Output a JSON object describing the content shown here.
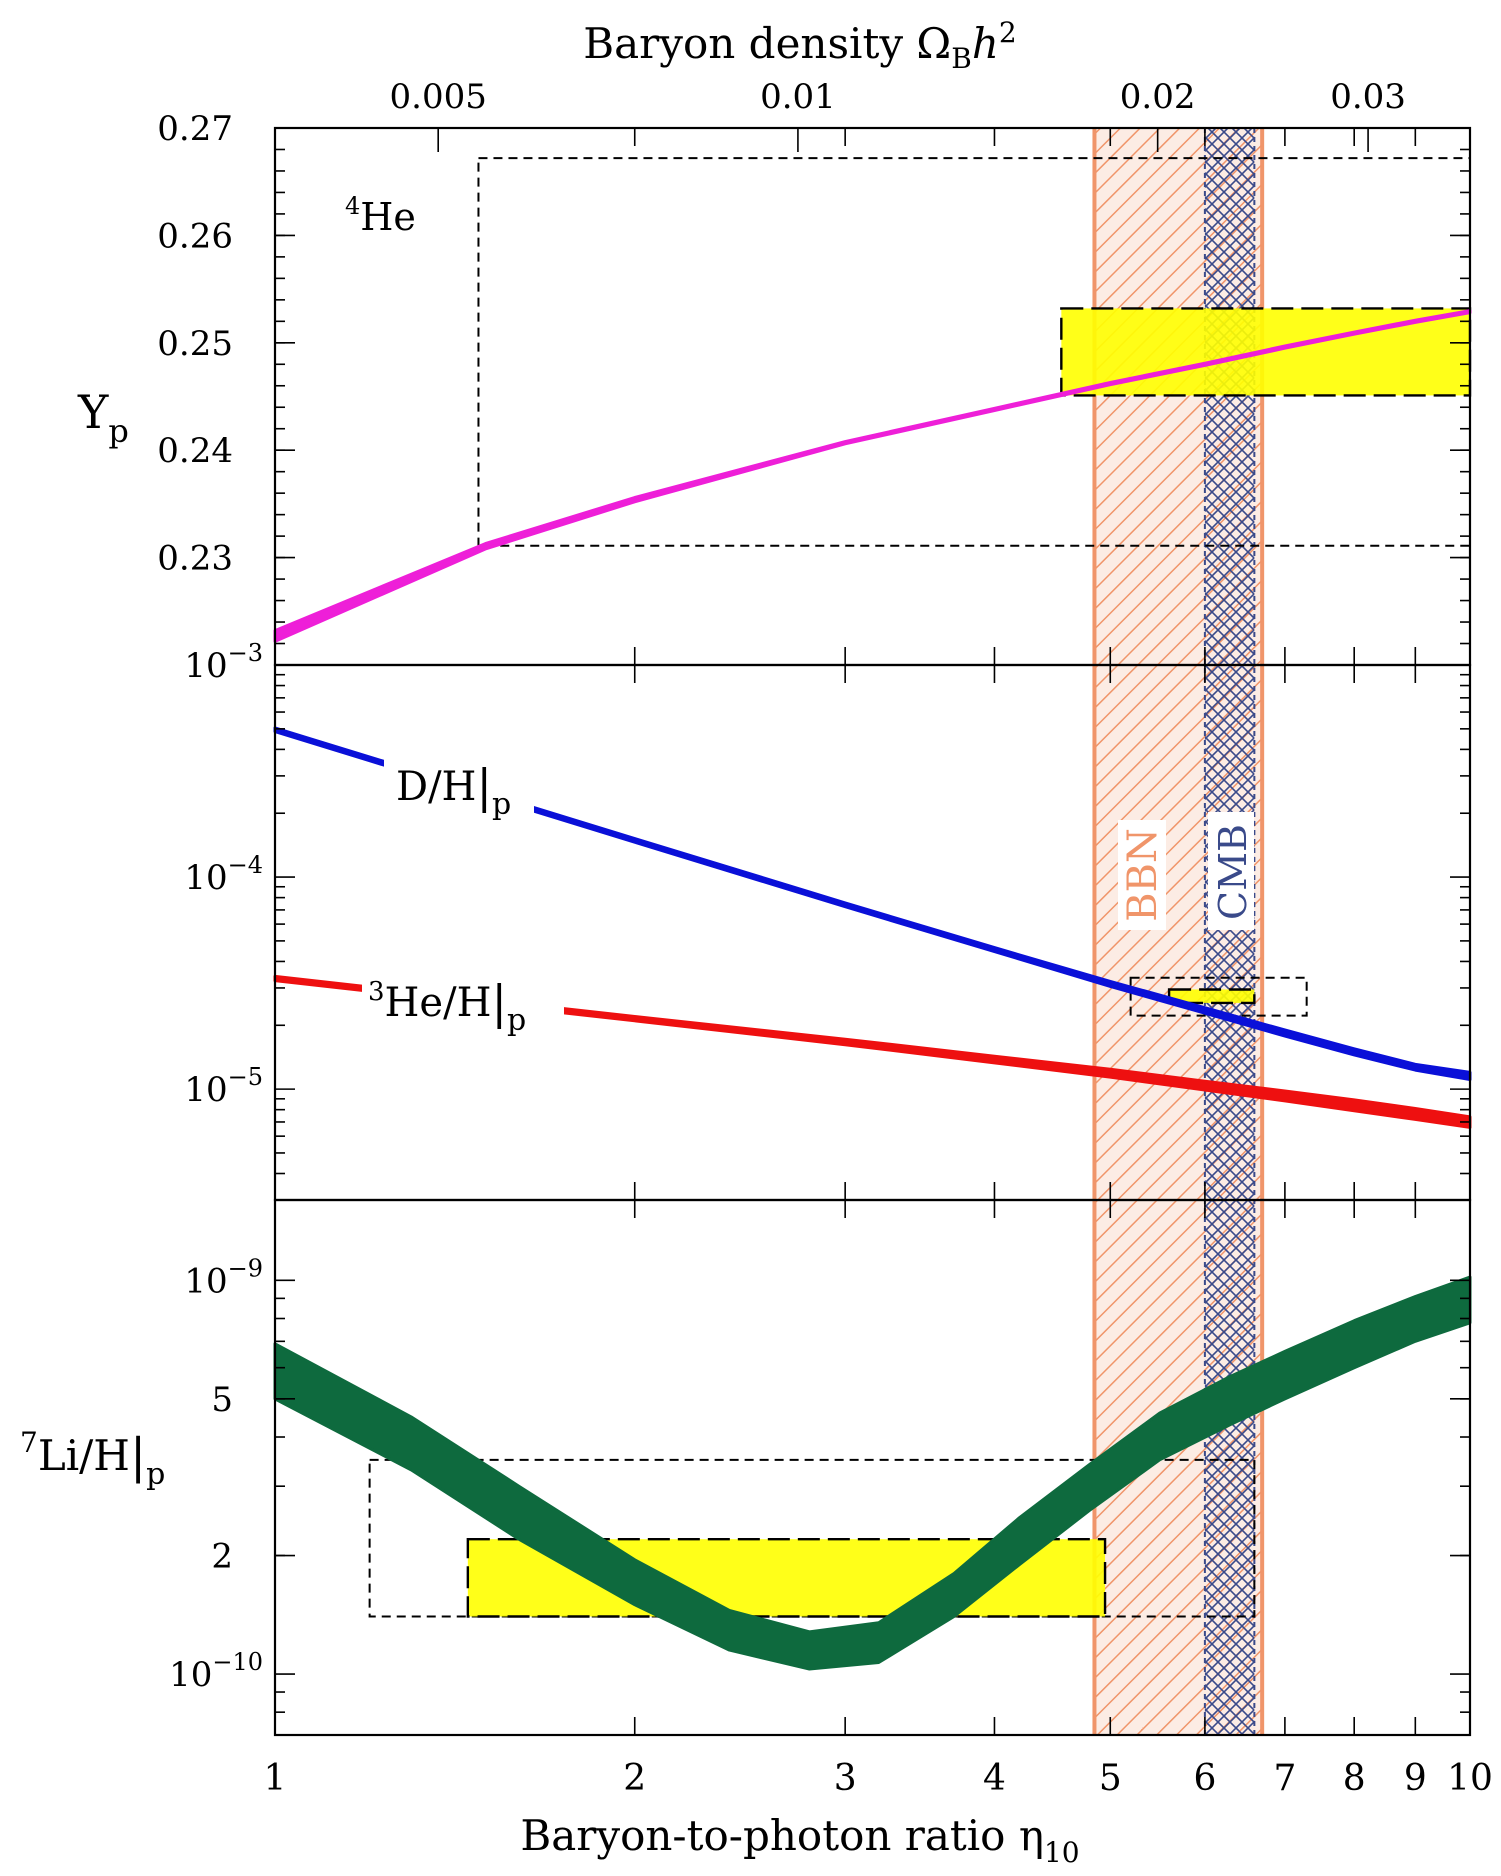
{
  "chart_data": {
    "type": "line",
    "top_axis": {
      "label_text": "Baryon density Ω",
      "label_sub": "B",
      "label_h": "h",
      "label_sup": "2",
      "ticks": [
        {
          "value": 0.005,
          "label": "0.005"
        },
        {
          "value": 0.01,
          "label": "0.01"
        },
        {
          "value": 0.02,
          "label": "0.02"
        },
        {
          "value": 0.03,
          "label": "0.03"
        }
      ]
    },
    "x_axis": {
      "label_text": "Baryon-to-photon ratio η",
      "label_sub": "10",
      "scale": "log",
      "range": [
        1,
        10
      ],
      "ticks": [
        {
          "value": 1,
          "label": "1"
        },
        {
          "value": 2,
          "label": "2"
        },
        {
          "value": 3,
          "label": "3"
        },
        {
          "value": 4,
          "label": "4"
        },
        {
          "value": 5,
          "label": "5"
        },
        {
          "value": 6,
          "label": "6"
        },
        {
          "value": 7,
          "label": "7"
        },
        {
          "value": 8,
          "label": "8"
        },
        {
          "value": 9,
          "label": "9"
        },
        {
          "value": 10,
          "label": "10"
        }
      ]
    },
    "bands": [
      {
        "name": "BBN",
        "x_range": [
          4.85,
          6.7
        ],
        "color": "#f0956a"
      },
      {
        "name": "CMB",
        "x_range": [
          6.0,
          6.6
        ],
        "color": "#3a4a8a"
      }
    ],
    "panels": [
      {
        "id": "he4",
        "label_main": "Y",
        "label_sub": "p",
        "inner_label_sup": "4",
        "inner_label": "He",
        "scale": "linear",
        "ylim": [
          0.22,
          0.27
        ],
        "ticks": [
          {
            "value": 0.27,
            "label": "0.27"
          },
          {
            "value": 0.26,
            "label": "0.26"
          },
          {
            "value": 0.25,
            "label": "0.25"
          },
          {
            "value": 0.24,
            "label": "0.24"
          },
          {
            "value": 0.23,
            "label": "0.23"
          }
        ],
        "series": [
          {
            "color": "#ee1fd8",
            "x": [
              1,
              1.5,
              2,
              3,
              4,
              5,
              6,
              7,
              8,
              9,
              10
            ],
            "y_low": [
              0.2222,
              0.2308,
              0.2352,
              0.2406,
              0.2437,
              0.2461,
              0.2479,
              0.2495,
              0.2508,
              0.2519,
              0.2528
            ],
            "y_high": [
              0.2232,
              0.2313,
              0.2356,
              0.2408,
              0.2439,
              0.2463,
              0.2481,
              0.2497,
              0.251,
              0.2521,
              0.253
            ]
          }
        ],
        "obs_box": {
          "x": [
            4.55,
            10
          ],
          "y": [
            0.2451,
            0.2532
          ],
          "color": "#ffff00"
        },
        "sys_box": {
          "x": [
            1.48,
            10
          ],
          "y": [
            0.2311,
            0.2672
          ]
        }
      },
      {
        "id": "dh",
        "scale": "log",
        "ylim": [
          3e-06,
          0.001
        ],
        "ticks": [
          {
            "value": 0.001,
            "label_base": "10",
            "label_exp": "−3"
          },
          {
            "value": 0.0001,
            "label_base": "10",
            "label_exp": "−4"
          },
          {
            "value": 1e-05,
            "label_base": "10",
            "label_exp": "−5"
          }
        ],
        "series": [
          {
            "name_main": "D/H",
            "name_sub": "p",
            "color": "#0a10d8",
            "x": [
              1,
              2,
              3,
              4,
              5,
              6,
              7,
              8,
              9,
              10
            ],
            "y_low": [
              0.000485,
              0.000146,
              7.25e-05,
              4.45e-05,
              3.05e-05,
              2.28e-05,
              1.78e-05,
              1.45e-05,
              1.23e-05,
              1.11e-05
            ],
            "y_high": [
              0.000505,
              0.000152,
              7.55e-05,
              4.65e-05,
              3.22e-05,
              2.42e-05,
              1.9e-05,
              1.55e-05,
              1.31e-05,
              1.2e-05
            ]
          },
          {
            "name_main": "He/H",
            "name_sub": "p",
            "name_sup": "3",
            "color": "#ee1010",
            "x": [
              1,
              2,
              3,
              4,
              5,
              6,
              7,
              8,
              9,
              10
            ],
            "y_low": [
              3.25e-05,
              2.1e-05,
              1.62e-05,
              1.33e-05,
              1.14e-05,
              9.9e-06,
              8.8e-06,
              7.9e-06,
              7.2e-06,
              6.6e-06
            ],
            "y_high": [
              3.4e-05,
              2.2e-05,
              1.72e-05,
              1.43e-05,
              1.24e-05,
              1.09e-05,
              9.8e-06,
              8.9e-06,
              8.1e-06,
              7.4e-06
            ]
          }
        ],
        "obs_box": {
          "x": [
            5.6,
            6.6
          ],
          "y": [
            2.55e-05,
            2.95e-05
          ],
          "color": "#ffff00"
        },
        "sys_box": {
          "x": [
            5.2,
            7.3
          ],
          "y": [
            2.22e-05,
            3.35e-05
          ]
        }
      },
      {
        "id": "li7",
        "label_sup": "7",
        "label_main": "Li/H",
        "label_sub": "p",
        "scale": "log",
        "ylim": [
          7e-11,
          1.6e-09
        ],
        "ticks": [
          {
            "value": 1e-09,
            "label_base": "10",
            "label_exp": "−9"
          },
          {
            "value": 5e-10,
            "label": "5"
          },
          {
            "value": 2e-10,
            "label": "2"
          },
          {
            "value": 1e-10,
            "label_base": "10",
            "label_exp": "−10"
          }
        ],
        "series": [
          {
            "color": "#0e6a3e",
            "x": [
              1,
              1.3,
              1.6,
              2.0,
              2.4,
              2.8,
              3.2,
              3.7,
              4.2,
              4.8,
              5.5,
              6.3,
              7.0,
              8.0,
              9.0,
              10.0
            ],
            "y_low": [
              5e-10,
              3.3e-10,
              2.2e-10,
              1.5e-10,
              1.15e-10,
              1.03e-10,
              1.07e-10,
              1.4e-10,
              1.9e-10,
              2.6e-10,
              3.5e-10,
              4.3e-10,
              5e-10,
              6e-10,
              7e-10,
              7.8e-10
            ],
            "y_high": [
              6.9e-10,
              4.5e-10,
              3e-10,
              1.95e-10,
              1.45e-10,
              1.28e-10,
              1.35e-10,
              1.8e-10,
              2.5e-10,
              3.4e-10,
              4.6e-10,
              5.7e-10,
              6.6e-10,
              7.9e-10,
              9.1e-10,
              1.02e-09
            ]
          }
        ],
        "obs_box": {
          "x": [
            1.45,
            4.95
          ],
          "y": [
            1.4e-10,
            2.2e-10
          ],
          "color": "#ffff00"
        },
        "sys_box": {
          "x": [
            1.2,
            6.6
          ],
          "y": [
            1.4e-10,
            3.5e-10
          ]
        }
      }
    ]
  }
}
